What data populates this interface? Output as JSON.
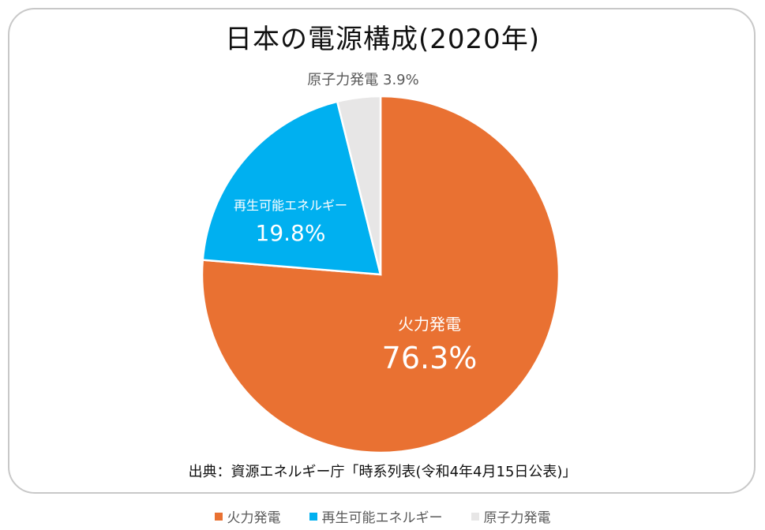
{
  "title": "日本の電源構成(2020年)",
  "source": "出典：資源エネルギー庁「時系列表(令和4年4月15日公表)」",
  "chart_data": {
    "type": "pie",
    "title": "日本の電源構成(2020年)",
    "start_angle_deg": 0,
    "direction": "clockwise",
    "legend_position": "bottom",
    "slices": [
      {
        "label": "火力発電",
        "value": 76.3,
        "display": "76.3%",
        "color": "#E97132"
      },
      {
        "label": "再生可能エネルギー",
        "value": 19.8,
        "display": "19.8%",
        "color": "#00B0F0"
      },
      {
        "label": "原子力発電",
        "value": 3.9,
        "display": "3.9%",
        "color": "#E7E6E6"
      }
    ]
  }
}
